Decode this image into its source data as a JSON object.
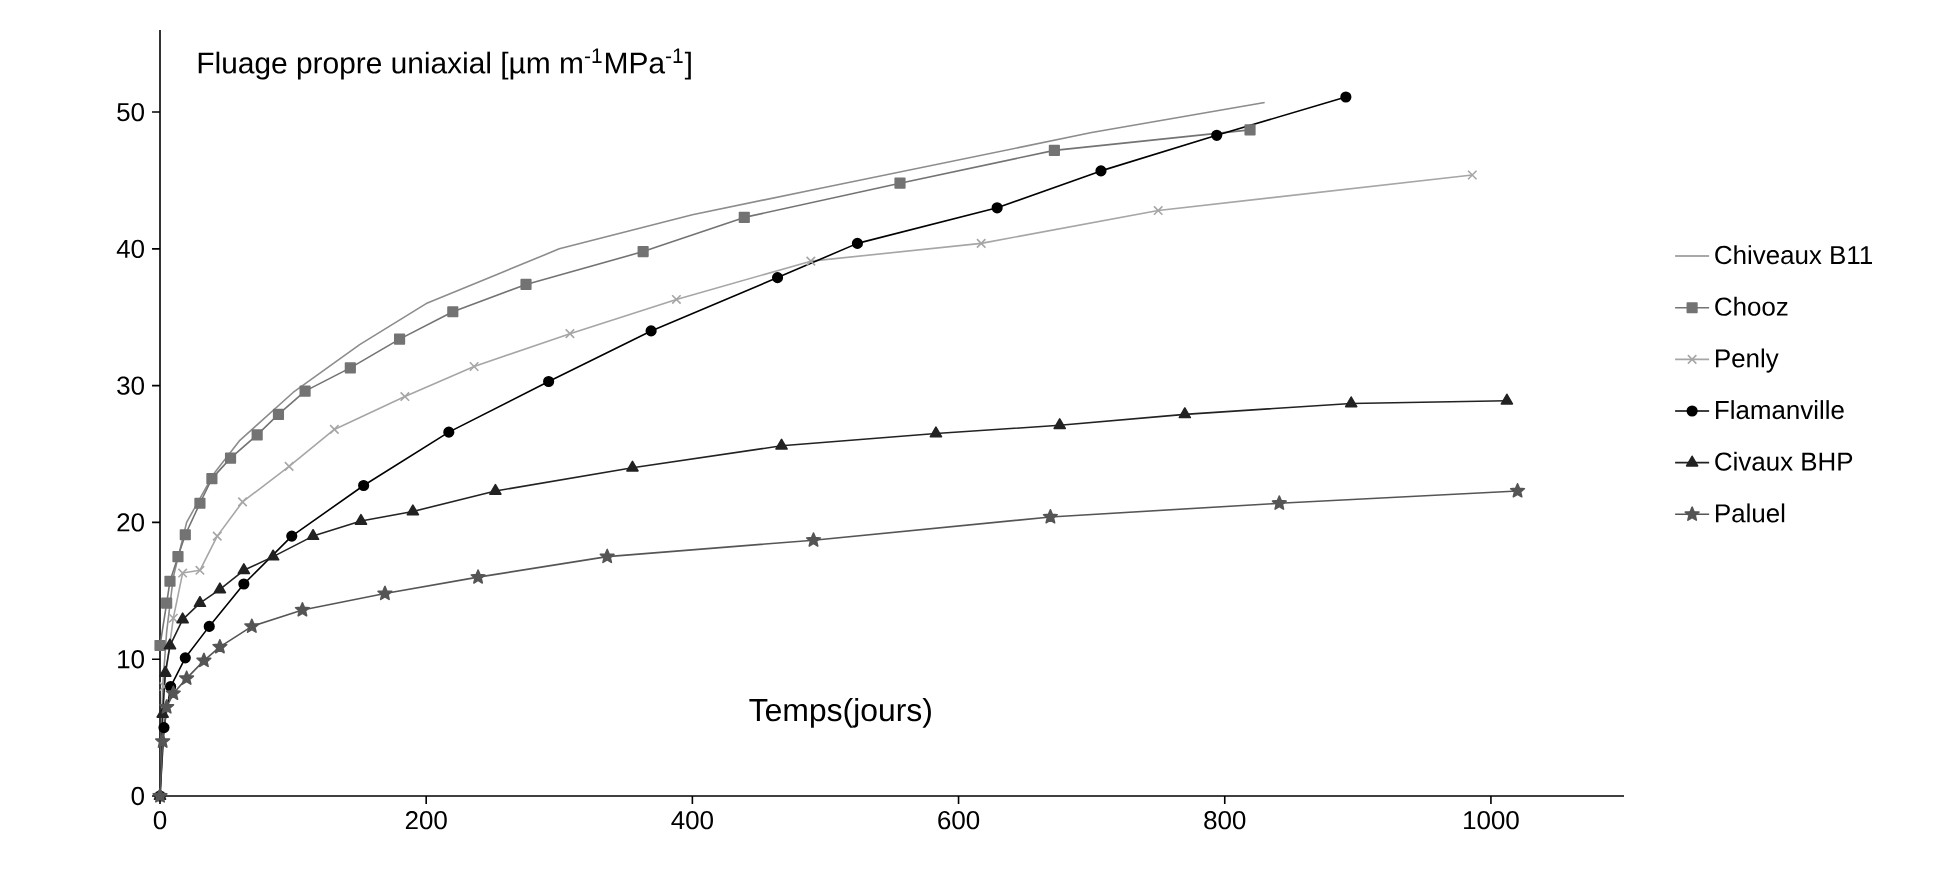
{
  "chart_data": {
    "type": "line",
    "ylabel": "Fluage propre uniaxial [µm m$^{-1}$MPa$^{-1}$]",
    "xlabel": "Temps(jours)",
    "xlim": [
      0,
      1100
    ],
    "xticks": [
      0,
      200,
      400,
      600,
      800,
      1000
    ],
    "ylim": [
      0,
      56
    ],
    "yticks": [
      0,
      10,
      20,
      30,
      40,
      50
    ],
    "grid": false,
    "legend": "right",
    "line_style": "solid",
    "series": [
      {
        "name": "Chiveaux B11",
        "color": "#8c8c8c",
        "marker": "none",
        "x": [
          0,
          2,
          5,
          10,
          20,
          40,
          60,
          100,
          150,
          200,
          250,
          300,
          400,
          500,
          600,
          700,
          830
        ],
        "values": [
          0,
          8,
          12,
          16,
          20,
          23.5,
          26,
          29.5,
          33,
          36,
          38,
          40,
          42.5,
          44.5,
          46.5,
          48.5,
          50.7
        ]
      },
      {
        "name": "Chooz",
        "color": "#737373",
        "marker": "square",
        "x": [
          0,
          5,
          7.5,
          13.5,
          19,
          30,
          39,
          53,
          73,
          89,
          109,
          143,
          180,
          220,
          275,
          363,
          439,
          556,
          672,
          819
        ],
        "values": [
          11,
          14.1,
          15.7,
          17.5,
          19.1,
          21.4,
          23.2,
          24.7,
          26.4,
          27.9,
          29.6,
          31.3,
          33.4,
          35.4,
          37.4,
          39.8,
          42.3,
          44.8,
          47.2,
          48.7
        ]
      },
      {
        "name": "Penly",
        "color": "#a6a6a6",
        "marker": "cross",
        "x": [
          0,
          3,
          10,
          17,
          30,
          43,
          62,
          97,
          131,
          184,
          236,
          308,
          388,
          489,
          617,
          750,
          986
        ],
        "values": [
          0,
          8,
          13,
          16.3,
          16.5,
          19,
          21.5,
          24.1,
          26.8,
          29.2,
          31.4,
          33.8,
          36.3,
          39.1,
          40.4,
          42.8,
          45.4
        ]
      },
      {
        "name": "Flamanville",
        "color": "#000000",
        "marker": "circle",
        "x": [
          0,
          3,
          8,
          19,
          37,
          63,
          99,
          153,
          217,
          292,
          369,
          464,
          524,
          629,
          707,
          794,
          891
        ],
        "values": [
          0,
          5,
          8,
          10.1,
          12.4,
          15.5,
          19,
          22.7,
          26.6,
          30.3,
          34,
          37.9,
          40.4,
          43,
          45.7,
          48.3,
          51.1
        ]
      },
      {
        "name": "Civaux BHP",
        "color": "#222222",
        "marker": "triangle",
        "x": [
          0,
          2,
          4,
          7.5,
          17,
          30,
          45,
          63,
          85,
          115,
          151,
          190,
          252,
          355,
          467,
          583,
          676,
          770,
          895,
          1012
        ],
        "values": [
          0,
          6,
          9,
          11,
          12.9,
          14.1,
          15.1,
          16.5,
          17.5,
          19,
          20.1,
          20.8,
          22.3,
          24,
          25.6,
          26.5,
          27.1,
          27.9,
          28.7,
          28.9
        ]
      },
      {
        "name": "Paluel",
        "color": "#555555",
        "marker": "star",
        "x": [
          0,
          2,
          5,
          10,
          20,
          33,
          45,
          69,
          107,
          169,
          239,
          336,
          491,
          669,
          841,
          1020
        ],
        "values": [
          0,
          4,
          6.5,
          7.5,
          8.6,
          9.9,
          10.9,
          12.4,
          13.6,
          14.8,
          16,
          17.5,
          18.7,
          20.4,
          21.4,
          22.3
        ]
      }
    ]
  }
}
